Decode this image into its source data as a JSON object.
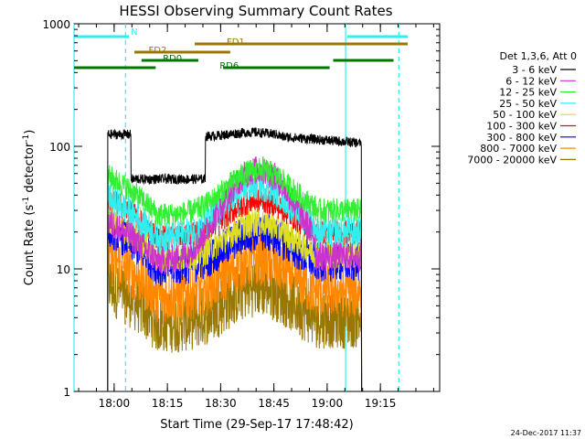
{
  "chart_data": {
    "type": "line",
    "title": "HESSI Observing Summary Count Rates",
    "xlabel": "Start Time (29-Sep-17 17:48:42)",
    "ylabel_main": "Count Rate (s",
    "ylabel_sup": "-1",
    "ylabel_mid": " detector",
    "ylabel_sup2": "-1",
    "ylabel_end": ")",
    "y_scale": "log",
    "ylim": [
      1,
      1000
    ],
    "y_ticks": [
      {
        "value": 1,
        "label": "1"
      },
      {
        "value": 10,
        "label": "10"
      },
      {
        "value": 100,
        "label": "100"
      },
      {
        "value": 1000,
        "label": "1000"
      }
    ],
    "xlim_minutes": [
      0,
      103
    ],
    "x_ticks": [
      {
        "value": 11.3,
        "label": "18:00"
      },
      {
        "value": 26.3,
        "label": "18:15"
      },
      {
        "value": 41.3,
        "label": "18:30"
      },
      {
        "value": 56.3,
        "label": "18:45"
      },
      {
        "value": 71.3,
        "label": "19:00"
      },
      {
        "value": 86.3,
        "label": "19:15"
      }
    ],
    "legend_title": "Det 1,3,6, Att 0",
    "legend_placement": "right",
    "series": [
      {
        "name": "3 - 6 keV",
        "color": "#000000"
      },
      {
        "name": "6 - 12 keV",
        "color": "#cc33cc"
      },
      {
        "name": "12 - 25 keV",
        "color": "#33ee33"
      },
      {
        "name": "25 - 50 keV",
        "color": "#33eeee"
      },
      {
        "name": "50 - 100 keV",
        "color": "#dddd22"
      },
      {
        "name": "100 - 300 keV",
        "color": "#ff0000"
      },
      {
        "name": "300 - 800 keV",
        "color": "#0000ff"
      },
      {
        "name": "800 - 7000 keV",
        "color": "#ff8800"
      },
      {
        "name": "7000 - 20000 keV",
        "color": "#997700"
      }
    ],
    "flag_bars": [
      {
        "label": "N",
        "color": "#33eeee",
        "segments": [
          [
            0,
            15.5
          ],
          [
            77,
            94
          ]
        ]
      },
      {
        "label": "FD1",
        "color": "#997700",
        "segments": [
          [
            34,
            94
          ]
        ]
      },
      {
        "label": "FD2",
        "color": "#997700",
        "segments": [
          [
            17,
            44
          ]
        ]
      },
      {
        "label": "RD0",
        "color": "#007700",
        "segments": [
          [
            19,
            35
          ],
          [
            73,
            90
          ]
        ]
      },
      {
        "label": "RD6",
        "color": "#007700",
        "segments": [
          [
            0,
            23
          ],
          [
            42,
            72
          ]
        ]
      }
    ],
    "vertical_markers": [
      {
        "value": 0,
        "color": "#33eeee",
        "style": "solid"
      },
      {
        "value": 14.5,
        "color": "#33eeee",
        "style": "dashed"
      },
      {
        "value": 76.5,
        "color": "#33eeee",
        "style": "solid"
      },
      {
        "value": 91.5,
        "color": "#33eeee",
        "style": "dashed"
      }
    ],
    "footer_date": "24-Dec-2017 11:37"
  }
}
